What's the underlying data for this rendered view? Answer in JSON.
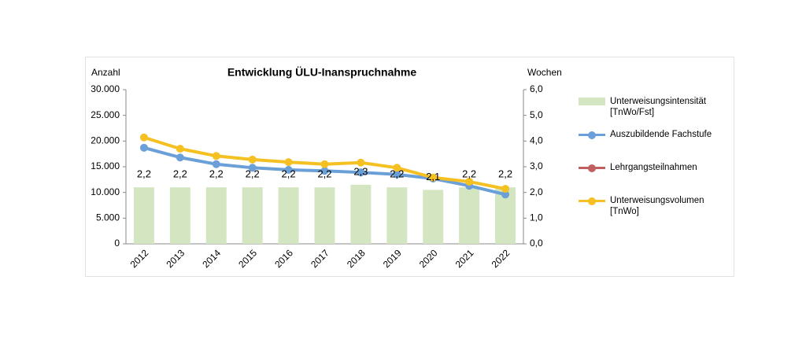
{
  "chart_data": {
    "type": "combo",
    "title": "Entwicklung ÜLU-Inanspruchnahme",
    "y_label": "Anzahl",
    "y2_label": "Wochen",
    "categories": [
      "2012",
      "2013",
      "2014",
      "2015",
      "2016",
      "2017",
      "2018",
      "2019",
      "2020",
      "2021",
      "2022"
    ],
    "series": [
      {
        "name": "Unterweisungsintensität [TnWo/Fst]",
        "type": "bar",
        "axis": "y2",
        "color": "#d4e6c1",
        "values": [
          2.2,
          2.2,
          2.2,
          2.2,
          2.2,
          2.2,
          2.3,
          2.2,
          2.1,
          2.2,
          2.2
        ],
        "value_labels": [
          "2,2",
          "2,2",
          "2,2",
          "2,2",
          "2,2",
          "2,2",
          "2,3",
          "2,2",
          "2,1",
          "2,2",
          "2,2"
        ]
      },
      {
        "name": "Auszubildende Fachstufe",
        "type": "line",
        "color": "#6a9fd8",
        "values": [
          18700,
          16800,
          15500,
          14800,
          14400,
          14200,
          13900,
          13500,
          12700,
          11300,
          9600
        ]
      },
      {
        "name": "Lehrgangsteilnahmen",
        "type": "line",
        "color": "#c0605e",
        "values": [
          null,
          null,
          null,
          null,
          null,
          null,
          null,
          null,
          null,
          null,
          null
        ]
      },
      {
        "name": "Unterweisungsvolumen [TnWo]",
        "type": "line",
        "color": "#f5c022",
        "values": [
          20700,
          18500,
          17100,
          16400,
          15900,
          15500,
          15800,
          14800,
          12900,
          12100,
          10700
        ]
      }
    ],
    "ylim": [
      0,
      30000
    ],
    "yticks": [
      0,
      {
        "value": 5000,
        "label": "5.000"
      },
      {
        "value": 10000,
        "label": "10.000"
      },
      {
        "value": 15000,
        "label": "15.000"
      },
      {
        "value": 20000,
        "label": "20.000"
      },
      {
        "value": 25000,
        "label": "25.000"
      },
      {
        "value": 30000,
        "label": "30.000"
      }
    ],
    "y2lim": [
      0,
      6
    ],
    "y2ticks": [
      {
        "value": 0,
        "label": "0,0"
      },
      {
        "value": 1,
        "label": "1,0"
      },
      {
        "value": 2,
        "label": "2,0"
      },
      {
        "value": 3,
        "label": "3,0"
      },
      {
        "value": 4,
        "label": "4,0"
      },
      {
        "value": 5,
        "label": "5,0"
      },
      {
        "value": 6,
        "label": "6,0"
      }
    ],
    "legend": "right"
  }
}
